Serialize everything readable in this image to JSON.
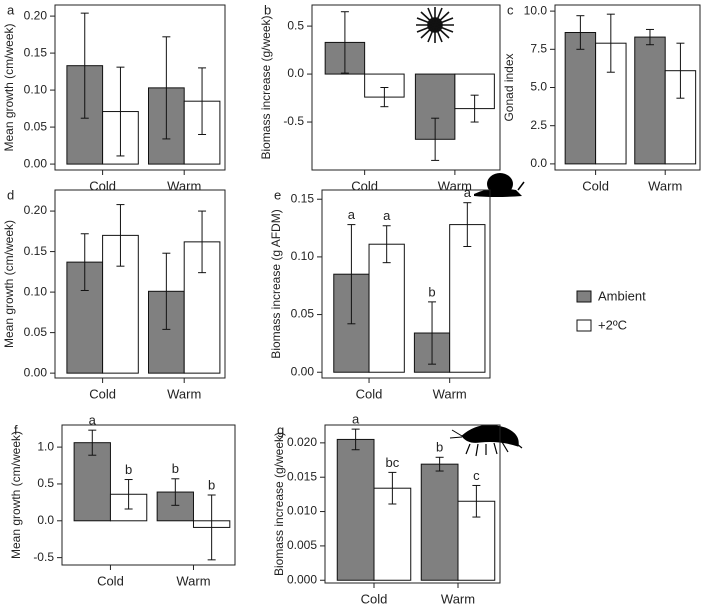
{
  "chart_data": [
    {
      "type": "bar",
      "panel": "a",
      "ylabel": "Mean growth (cm/week)",
      "categories": [
        "Cold",
        "Warm"
      ],
      "series": [
        {
          "color": "#808080",
          "values": [
            0.133,
            0.103
          ],
          "errors": [
            0.071,
            0.069
          ]
        },
        {
          "color": "#ffffff",
          "values": [
            0.071,
            0.085
          ],
          "errors": [
            0.06,
            0.045
          ]
        }
      ],
      "ylim": [
        -0.008,
        0.215
      ],
      "yticks": [
        {
          "value": 0,
          "label": "0.00"
        },
        {
          "value": 0.05,
          "label": "0.05"
        },
        {
          "value": 0.1,
          "label": "0.10"
        },
        {
          "value": 0.15,
          "label": "0.15"
        },
        {
          "value": 0.2,
          "label": "0.20"
        }
      ]
    },
    {
      "type": "bar",
      "panel": "b",
      "ylabel": "Biomass increase (g/week)",
      "categories": [
        "Cold",
        "Warm"
      ],
      "series": [
        {
          "color": "#808080",
          "values": [
            0.33,
            -0.68
          ],
          "errors": [
            0.32,
            0.22
          ]
        },
        {
          "color": "#ffffff",
          "values": [
            -0.24,
            -0.36
          ],
          "errors": [
            0.1,
            0.14
          ]
        }
      ],
      "ylim": [
        -1.0,
        0.72
      ],
      "yticks": [
        -0.5,
        {
          "value": 0,
          "label": "0.0"
        },
        0.5
      ]
    },
    {
      "type": "bar",
      "panel": "c",
      "ylabel": "Gonad index",
      "categories": [
        "Cold",
        "Warm"
      ],
      "series": [
        {
          "color": "#808080",
          "values": [
            8.6,
            8.3
          ],
          "errors": [
            1.1,
            0.5
          ]
        },
        {
          "color": "#ffffff",
          "values": [
            7.9,
            6.1
          ],
          "errors": [
            1.9,
            1.8
          ]
        }
      ],
      "ylim": [
        -0.4,
        10.4
      ],
      "yticks": [
        {
          "value": 0,
          "label": "0.0"
        },
        2.5,
        {
          "value": 5,
          "label": "5.0"
        },
        7.5,
        {
          "value": 10,
          "label": "10.0"
        }
      ]
    },
    {
      "type": "bar",
      "panel": "d",
      "ylabel": "Mean growth (cm/week)",
      "categories": [
        "Cold",
        "Warm"
      ],
      "series": [
        {
          "color": "#808080",
          "values": [
            0.137,
            0.101
          ],
          "errors": [
            0.035,
            0.047
          ]
        },
        {
          "color": "#ffffff",
          "values": [
            0.17,
            0.162
          ],
          "errors": [
            0.038,
            0.038
          ]
        }
      ],
      "ylim": [
        -0.006,
        0.226
      ],
      "yticks": [
        {
          "value": 0,
          "label": "0.00"
        },
        {
          "value": 0.05,
          "label": "0.05"
        },
        {
          "value": 0.1,
          "label": "0.10"
        },
        {
          "value": 0.15,
          "label": "0.15"
        },
        {
          "value": 0.2,
          "label": "0.20"
        }
      ]
    },
    {
      "type": "bar",
      "panel": "e",
      "ylabel": "Biomass increase (g AFDM)",
      "categories": [
        "Cold",
        "Warm"
      ],
      "series": [
        {
          "name": "Ambient",
          "color": "#808080",
          "values": [
            0.085,
            0.034
          ],
          "errors": [
            0.043,
            0.027
          ],
          "letters": [
            "a",
            "b"
          ]
        },
        {
          "name": "+2ºC",
          "color": "#ffffff",
          "values": [
            0.111,
            0.128
          ],
          "errors": [
            0.016,
            0.019
          ],
          "letters": [
            "a",
            "a"
          ]
        }
      ],
      "ylim": [
        -0.005,
        0.158
      ],
      "legend": "right",
      "yticks": [
        {
          "value": 0,
          "label": "0.00"
        },
        {
          "value": 0.05,
          "label": "0.05"
        },
        {
          "value": 0.1,
          "label": "0.10"
        },
        {
          "value": 0.15,
          "label": "0.15"
        }
      ]
    },
    {
      "type": "bar",
      "panel": "f",
      "ylabel": "Mean growth (cm/week)",
      "categories": [
        "Cold",
        "Warm"
      ],
      "series": [
        {
          "color": "#808080",
          "values": [
            1.06,
            0.39
          ],
          "errors": [
            0.17,
            0.18
          ],
          "letters": [
            "a",
            "b"
          ]
        },
        {
          "color": "#ffffff",
          "values": [
            0.36,
            -0.09
          ],
          "errors": [
            0.2,
            0.44
          ],
          "letters": [
            "b",
            "b"
          ]
        }
      ],
      "ylim": [
        -0.6,
        1.3
      ],
      "yticks": [
        -0.5,
        {
          "value": 0,
          "label": "0.0"
        },
        0.5,
        {
          "value": 1,
          "label": "1.0"
        }
      ]
    },
    {
      "type": "bar",
      "panel": "g",
      "ylabel": "Biomass increase (g/week)",
      "categories": [
        "Cold",
        "Warm"
      ],
      "series": [
        {
          "color": "#808080",
          "values": [
            0.0205,
            0.0169
          ],
          "errors": [
            0.0015,
            0.001
          ],
          "letters": [
            "a",
            "b"
          ]
        },
        {
          "color": "#ffffff",
          "values": [
            0.0134,
            0.0115
          ],
          "errors": [
            0.0023,
            0.0023
          ],
          "letters": [
            "bc",
            "c"
          ]
        }
      ],
      "ylim": [
        -0.0004,
        0.0226
      ],
      "yticks": [
        {
          "value": 0,
          "label": "0.000"
        },
        {
          "value": 0.005,
          "label": "0.005"
        },
        {
          "value": 0.01,
          "label": "0.010"
        },
        {
          "value": 0.015,
          "label": "0.015"
        },
        {
          "value": 0.02,
          "label": "0.020"
        }
      ]
    }
  ]
}
